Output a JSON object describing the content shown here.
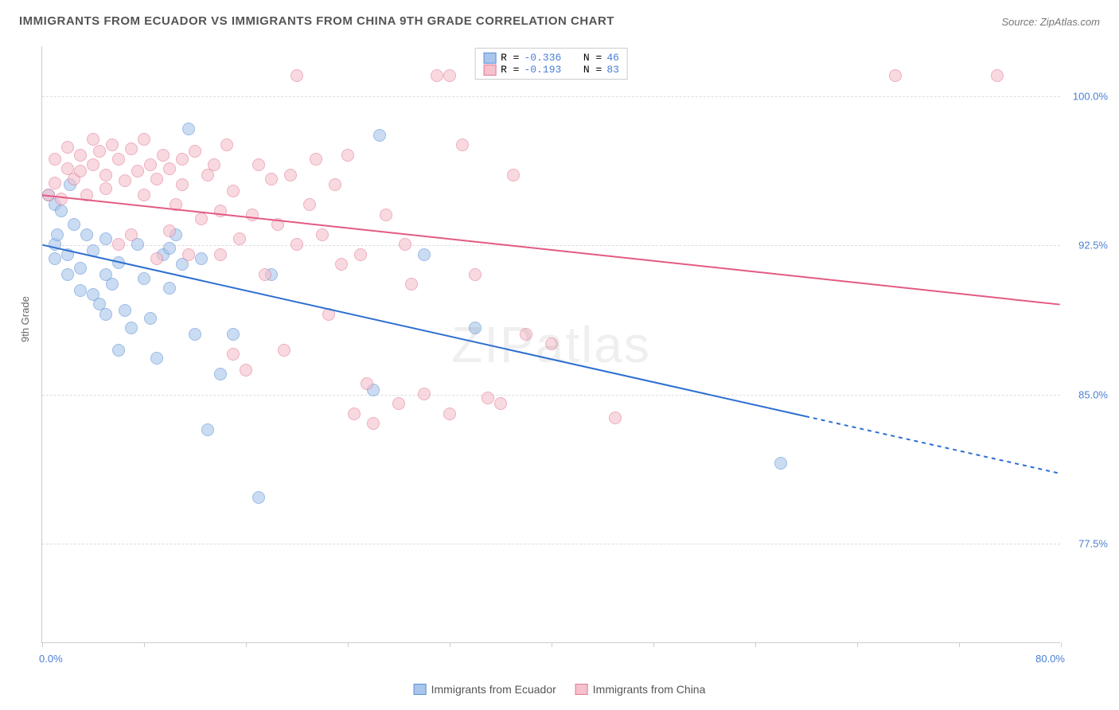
{
  "title": "IMMIGRANTS FROM ECUADOR VS IMMIGRANTS FROM CHINA 9TH GRADE CORRELATION CHART",
  "source": "Source: ZipAtlas.com",
  "watermark": "ZIPatlas",
  "ylabel": "9th Grade",
  "chart": {
    "type": "scatter",
    "xlim": [
      0,
      80
    ],
    "ylim": [
      72.5,
      102.5
    ],
    "x_ticks": [
      0,
      8,
      16,
      24,
      32,
      40,
      48,
      56,
      64,
      72,
      80
    ],
    "x_tick_labels_shown": {
      "0": "0.0%",
      "80": "80.0%"
    },
    "y_grid": [
      77.5,
      85.0,
      92.5,
      100.0
    ],
    "y_tick_labels": [
      "77.5%",
      "85.0%",
      "92.5%",
      "100.0%"
    ],
    "background_color": "#ffffff",
    "grid_color": "#dddddd",
    "axis_color": "#cccccc",
    "label_color": "#4a7fd6",
    "marker_size": 16,
    "marker_opacity": 0.6,
    "series": [
      {
        "name": "Immigrants from Ecuador",
        "color_fill": "#a8c5eb",
        "color_stroke": "#5b8fd6",
        "R": "-0.336",
        "N": "46",
        "trend": {
          "x1": 0,
          "y1": 92.5,
          "x2": 80,
          "y2": 81.0,
          "dash_after_x": 60,
          "line_color": "#2e6fd0",
          "line_width": 2
        },
        "points": [
          [
            0.5,
            95.0
          ],
          [
            1,
            94.5
          ],
          [
            1,
            92.5
          ],
          [
            1,
            91.8
          ],
          [
            1.2,
            93.0
          ],
          [
            1.5,
            94.2
          ],
          [
            2,
            92.0
          ],
          [
            2,
            91.0
          ],
          [
            2.2,
            95.5
          ],
          [
            2.5,
            93.5
          ],
          [
            3,
            91.3
          ],
          [
            3,
            90.2
          ],
          [
            3.5,
            93.0
          ],
          [
            4,
            90.0
          ],
          [
            4,
            92.2
          ],
          [
            4.5,
            89.5
          ],
          [
            5,
            92.8
          ],
          [
            5,
            89.0
          ],
          [
            5,
            91.0
          ],
          [
            5.5,
            90.5
          ],
          [
            6,
            87.2
          ],
          [
            6,
            91.6
          ],
          [
            6.5,
            89.2
          ],
          [
            7,
            88.3
          ],
          [
            7.5,
            92.5
          ],
          [
            8,
            90.8
          ],
          [
            8.5,
            88.8
          ],
          [
            9,
            86.8
          ],
          [
            9.5,
            92.0
          ],
          [
            10,
            90.3
          ],
          [
            10,
            92.3
          ],
          [
            10.5,
            93.0
          ],
          [
            11,
            91.5
          ],
          [
            11.5,
            98.3
          ],
          [
            12,
            88.0
          ],
          [
            12.5,
            91.8
          ],
          [
            13,
            83.2
          ],
          [
            14,
            86.0
          ],
          [
            15,
            88.0
          ],
          [
            17,
            79.8
          ],
          [
            18,
            91.0
          ],
          [
            26,
            85.2
          ],
          [
            26.5,
            98.0
          ],
          [
            30,
            92.0
          ],
          [
            34,
            88.3
          ],
          [
            58,
            81.5
          ]
        ]
      },
      {
        "name": "Immigrants from China",
        "color_fill": "#f6c0cc",
        "color_stroke": "#e07a94",
        "R": "-0.193",
        "N": "83",
        "trend": {
          "x1": 0,
          "y1": 95.0,
          "x2": 80,
          "y2": 89.5,
          "dash_after_x": 80,
          "line_color": "#e35a82",
          "line_width": 2
        },
        "points": [
          [
            0.5,
            95.0
          ],
          [
            1,
            96.8
          ],
          [
            1,
            95.6
          ],
          [
            1.5,
            94.8
          ],
          [
            2,
            97.4
          ],
          [
            2,
            96.3
          ],
          [
            2.5,
            95.8
          ],
          [
            3,
            97.0
          ],
          [
            3,
            96.2
          ],
          [
            3.5,
            95.0
          ],
          [
            4,
            97.8
          ],
          [
            4,
            96.5
          ],
          [
            4.5,
            97.2
          ],
          [
            5,
            96.0
          ],
          [
            5,
            95.3
          ],
          [
            5.5,
            97.5
          ],
          [
            6,
            96.8
          ],
          [
            6,
            92.5
          ],
          [
            6.5,
            95.7
          ],
          [
            7,
            97.3
          ],
          [
            7,
            93.0
          ],
          [
            7.5,
            96.2
          ],
          [
            8,
            95.0
          ],
          [
            8,
            97.8
          ],
          [
            8.5,
            96.5
          ],
          [
            9,
            95.8
          ],
          [
            9,
            91.8
          ],
          [
            9.5,
            97.0
          ],
          [
            10,
            93.2
          ],
          [
            10,
            96.3
          ],
          [
            10.5,
            94.5
          ],
          [
            11,
            96.8
          ],
          [
            11,
            95.5
          ],
          [
            11.5,
            92.0
          ],
          [
            12,
            97.2
          ],
          [
            12.5,
            93.8
          ],
          [
            13,
            96.0
          ],
          [
            13.5,
            96.5
          ],
          [
            14,
            94.2
          ],
          [
            14,
            92.0
          ],
          [
            14.5,
            97.5
          ],
          [
            15,
            95.2
          ],
          [
            15,
            87.0
          ],
          [
            15.5,
            92.8
          ],
          [
            16,
            86.2
          ],
          [
            16.5,
            94.0
          ],
          [
            17,
            96.5
          ],
          [
            17.5,
            91.0
          ],
          [
            18,
            95.8
          ],
          [
            18.5,
            93.5
          ],
          [
            19,
            87.2
          ],
          [
            19.5,
            96.0
          ],
          [
            20,
            92.5
          ],
          [
            20,
            101.0
          ],
          [
            21,
            94.5
          ],
          [
            21.5,
            96.8
          ],
          [
            22,
            93.0
          ],
          [
            22.5,
            89.0
          ],
          [
            23,
            95.5
          ],
          [
            23.5,
            91.5
          ],
          [
            24,
            97.0
          ],
          [
            24.5,
            84.0
          ],
          [
            25,
            92.0
          ],
          [
            25.5,
            85.5
          ],
          [
            26,
            83.5
          ],
          [
            27,
            94.0
          ],
          [
            28,
            84.5
          ],
          [
            28.5,
            92.5
          ],
          [
            29,
            90.5
          ],
          [
            30,
            85.0
          ],
          [
            31,
            101.0
          ],
          [
            32,
            84.0
          ],
          [
            33,
            97.5
          ],
          [
            34,
            91.0
          ],
          [
            35,
            84.8
          ],
          [
            36,
            84.5
          ],
          [
            37,
            96.0
          ],
          [
            38,
            88.0
          ],
          [
            40,
            87.5
          ],
          [
            45,
            83.8
          ],
          [
            67,
            101.0
          ],
          [
            75,
            101.0
          ],
          [
            32,
            101.0
          ]
        ]
      }
    ]
  },
  "legend_top": {
    "stat1_label": "R =",
    "stat2_label": "N ="
  },
  "legend_bottom": {
    "item1": "Immigrants from Ecuador",
    "item2": "Immigrants from China"
  }
}
